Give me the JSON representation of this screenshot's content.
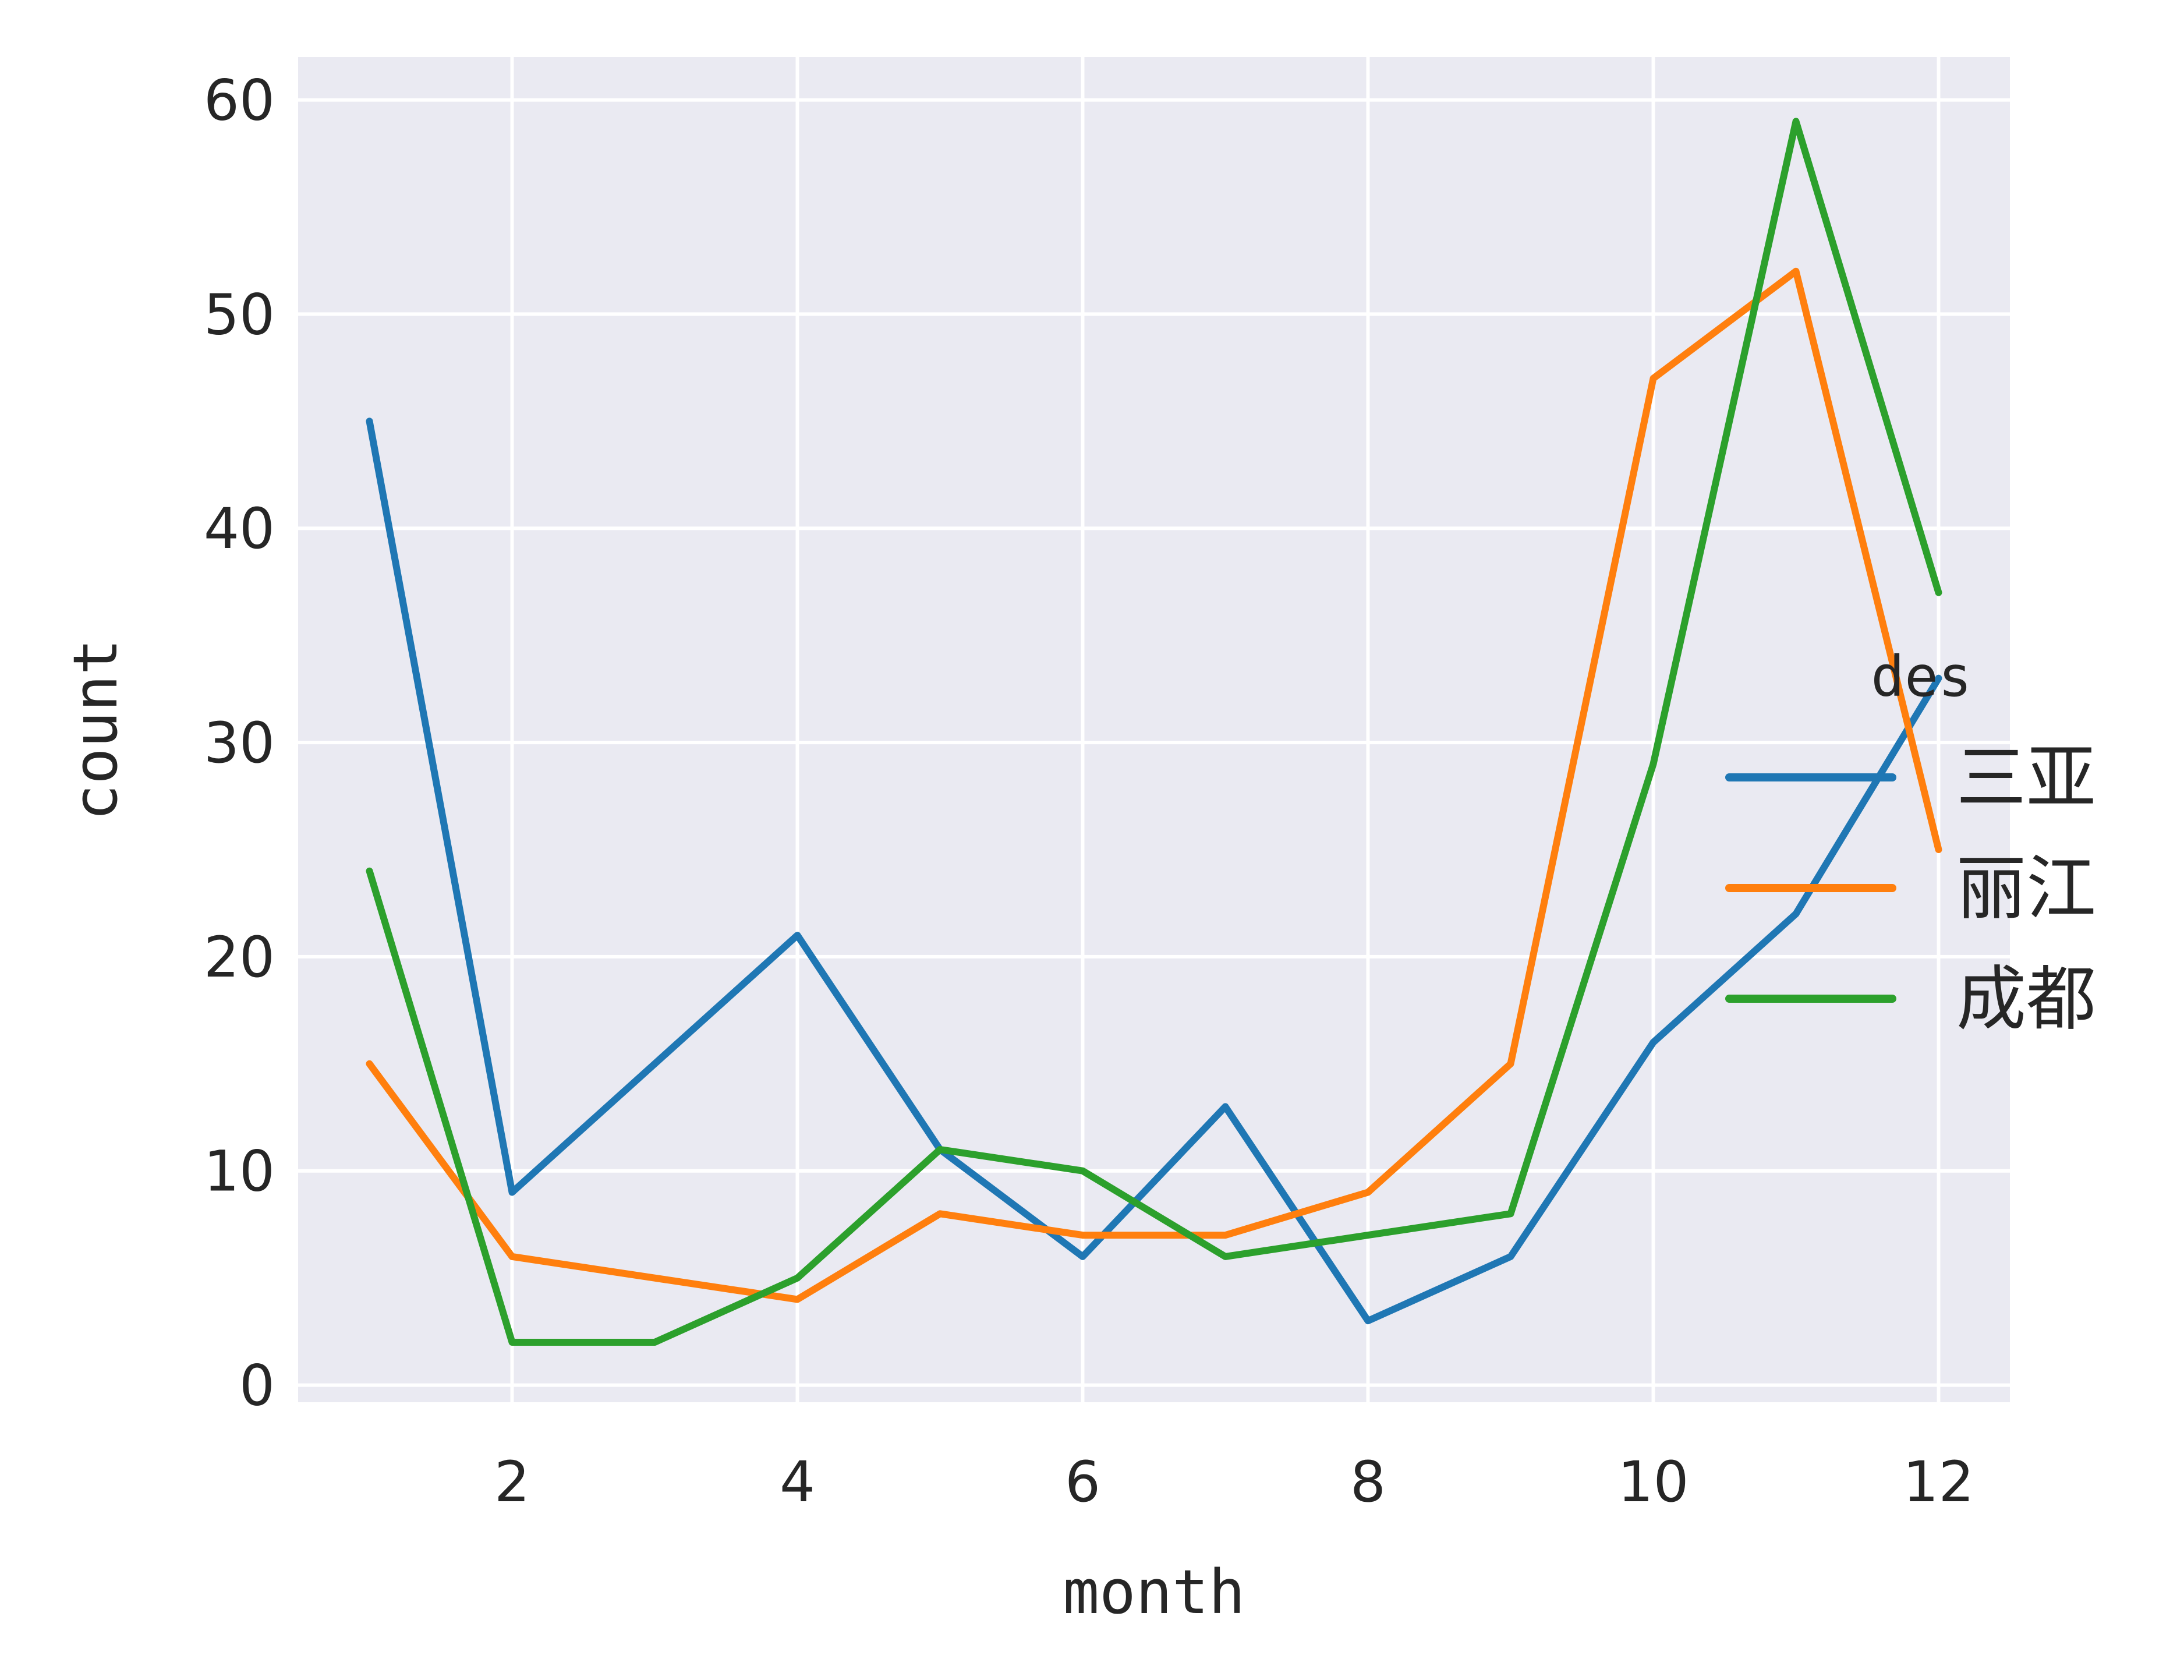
{
  "chart_data": {
    "type": "line",
    "xlabel": "month",
    "ylabel": "count",
    "xlim": [
      0.5,
      12.5
    ],
    "ylim": [
      -0.8,
      62
    ],
    "xticks": [
      "2",
      "4",
      "6",
      "8",
      "10",
      "12"
    ],
    "yticks": [
      "0",
      "10",
      "20",
      "30",
      "40",
      "50",
      "60"
    ],
    "grid": true,
    "legend": {
      "title": "des",
      "placement": "center-right"
    },
    "x": [
      1,
      2,
      3,
      4,
      5,
      6,
      7,
      8,
      9,
      10,
      11,
      12
    ],
    "series": [
      {
        "name": "三亚",
        "color": "#1f77b4",
        "values": [
          45,
          9,
          15,
          21,
          11,
          6,
          13,
          3,
          6,
          16,
          22,
          33
        ]
      },
      {
        "name": "丽江",
        "color": "#ff7f0e",
        "values": [
          15,
          6,
          5,
          4,
          8,
          7,
          7,
          9,
          15,
          47,
          52,
          25
        ]
      },
      {
        "name": "成都",
        "color": "#2ca02c",
        "values": [
          24,
          2,
          2,
          5,
          11,
          10,
          6,
          7,
          8,
          29,
          59,
          37
        ]
      }
    ],
    "colors": {
      "plot_background": "#eaeaf2",
      "grid": "#ffffff",
      "text": "#262626"
    }
  }
}
